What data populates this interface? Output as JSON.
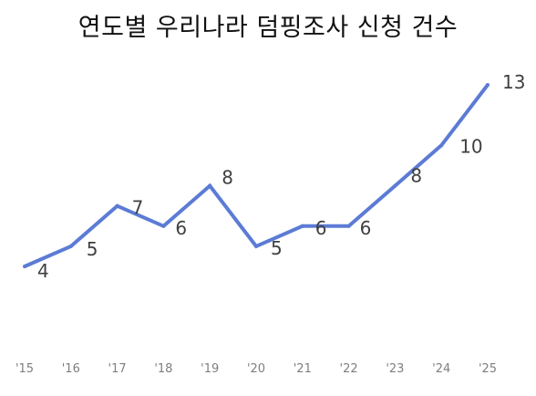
{
  "chart_data": {
    "type": "line",
    "title": "연도별 우리나라 덤핑조사 신청 건수",
    "categories": [
      "'15",
      "'16",
      "'17",
      "'18",
      "'19",
      "'20",
      "'21",
      "'22",
      "'23",
      "'24",
      "'25"
    ],
    "series": [
      {
        "values": [
          4,
          5,
          7,
          6,
          8,
          5,
          6,
          6,
          8,
          10,
          13
        ]
      }
    ],
    "xlabel": "",
    "ylabel": "",
    "grid": false,
    "legend": "none",
    "data_labels": true
  },
  "colors": {
    "line": "#5b7bd5",
    "label": "#404040",
    "tick": "#7f7f7f",
    "title": "#111111"
  }
}
